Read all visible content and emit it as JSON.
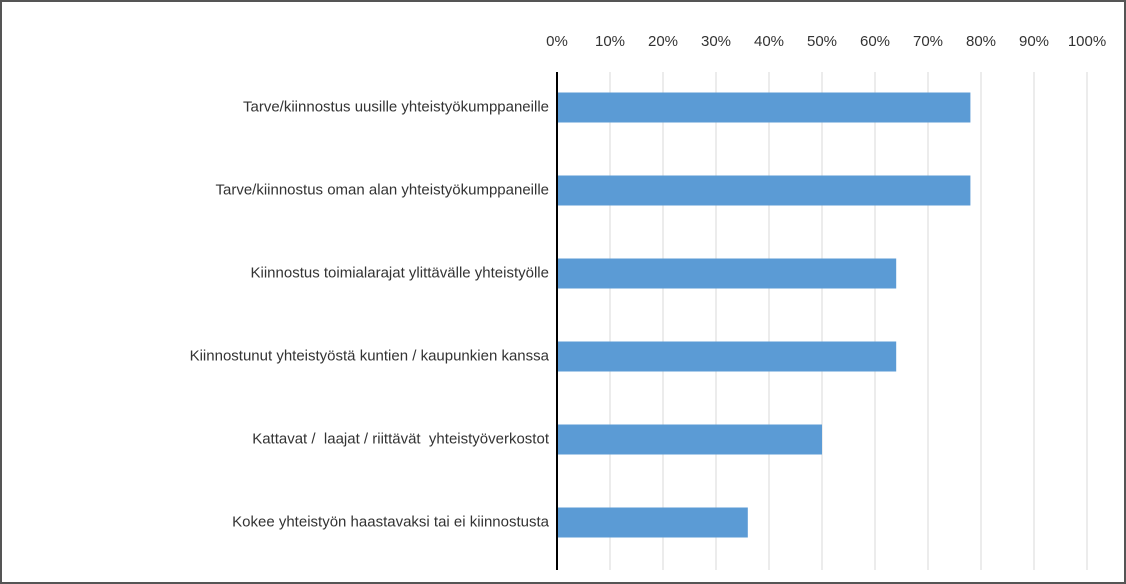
{
  "chart_data": {
    "type": "bar",
    "orientation": "horizontal",
    "categories": [
      "Tarve/kiinnostus uusille yhteistyökumppaneille",
      "Tarve/kiinnostus oman alan yhteistyökumppaneille",
      "Kiinnostus toimialarajat ylittävälle yhteistyölle",
      "Kiinnostunut yhteistyöstä kuntien / kaupunkien kanssa",
      "Kattavat /  laajat / riittävät  yhteistyöverkostot",
      "Kokee yhteistyön haastavaksi tai ei kiinnostusta"
    ],
    "values": [
      78,
      78,
      64,
      64,
      50,
      36
    ],
    "color": "#5b9bd5",
    "xlim": [
      0,
      100
    ],
    "xticks": [
      {
        "value": 0,
        "label": "0%"
      },
      {
        "value": 10,
        "label": "10%"
      },
      {
        "value": 20,
        "label": "20%"
      },
      {
        "value": 30,
        "label": "30%"
      },
      {
        "value": 40,
        "label": "40%"
      },
      {
        "value": 50,
        "label": "50%"
      },
      {
        "value": 60,
        "label": "60%"
      },
      {
        "value": 70,
        "label": "70%"
      },
      {
        "value": 80,
        "label": "80%"
      },
      {
        "value": 90,
        "label": "90%"
      },
      {
        "value": 100,
        "label": "100%"
      }
    ],
    "grid": true
  }
}
